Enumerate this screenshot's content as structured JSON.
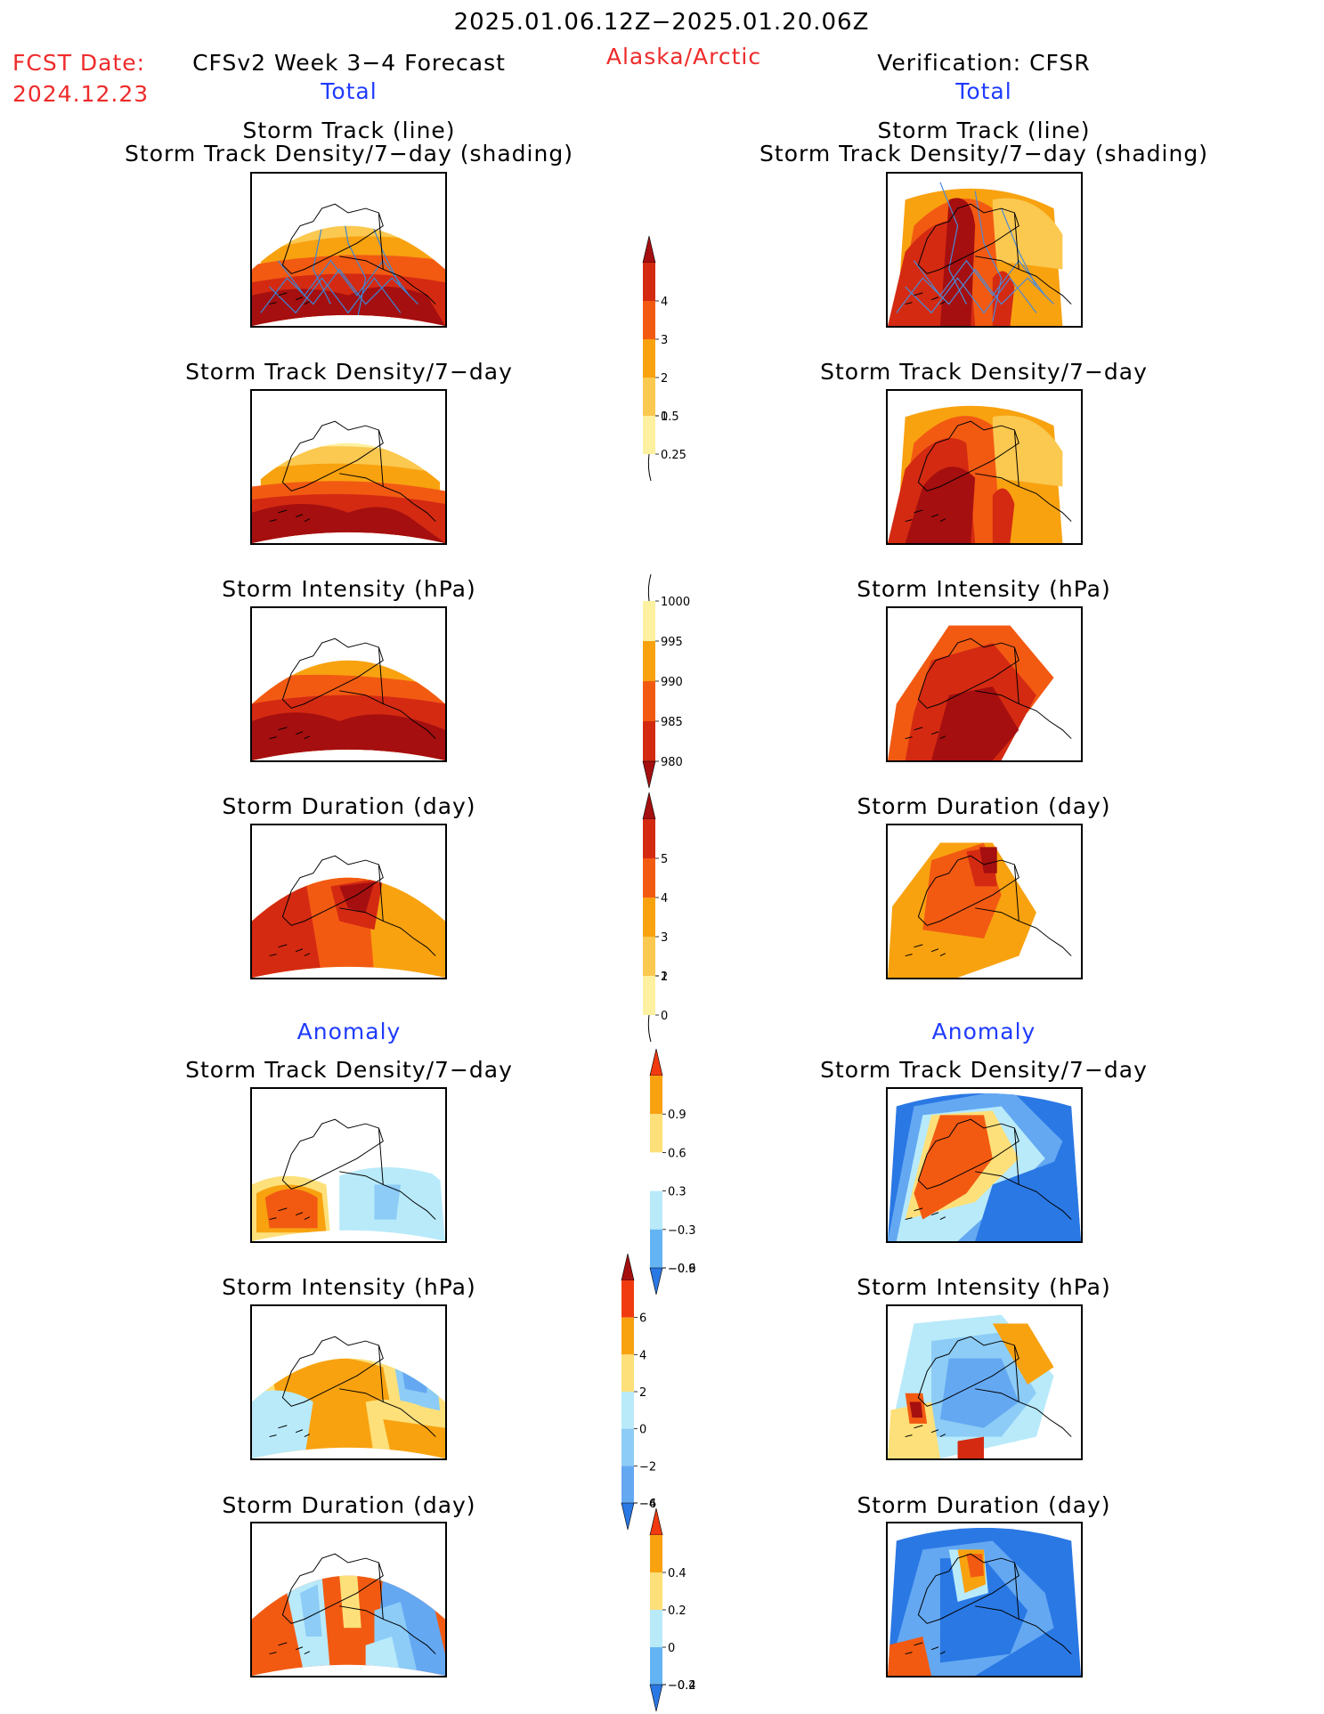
{
  "header": {
    "period": "2025.01.06.12Z−2025.01.20.06Z",
    "fcst_label": "FCST Date:",
    "fcst_date": "2024.12.23",
    "forecast_title": "CFSv2 Week 3−4 Forecast",
    "region": "Alaska/Arctic",
    "verification_title": "Verification: CFSR",
    "left_total": "Total",
    "right_total": "Total",
    "left_anomaly": "Anomaly",
    "right_anomaly": "Anomaly"
  },
  "panel_titles": {
    "track_line": "Storm Track (line)",
    "track_shading": "Storm Track Density/7−day (shading)",
    "density": "Storm Track Density/7−day",
    "intensity": "Storm Intensity (hPa)",
    "duration": "Storm Duration (day)"
  },
  "colorbars": {
    "density_total": {
      "labels": [
        "4",
        "3",
        "2",
        "1",
        "0.5",
        "0.25"
      ],
      "colors": [
        "#a50f0f",
        "#d42a12",
        "#f25a12",
        "#f8a210",
        "#fbc850",
        "#fdf0a0"
      ]
    },
    "intensity_total": {
      "labels": [
        "1000",
        "995",
        "990",
        "985",
        "980"
      ],
      "colors": [
        "#fdf0a0",
        "#f8a210",
        "#f25a12",
        "#d42a12",
        "#a50f0f"
      ]
    },
    "duration_total": {
      "labels": [
        "5",
        "4",
        "3",
        "2",
        "1",
        "0"
      ],
      "colors": [
        "#a50f0f",
        "#d42a12",
        "#f25a12",
        "#f8a210",
        "#fbc850",
        "#fdf0a0"
      ]
    },
    "density_anomaly": {
      "labels": [
        "0.9",
        "0.6",
        "0.3",
        "−0.3",
        "−0.6",
        "−0.9"
      ],
      "colors": [
        "#f03a10",
        "#f8a210",
        "#fde07a",
        "#ffffff",
        "#b8eafa",
        "#64b4f4",
        "#2a78e4"
      ]
    },
    "intensity_anomaly": {
      "labels": [
        "6",
        "4",
        "2",
        "0",
        "−2",
        "−4",
        "−6"
      ],
      "colors": [
        "#a50f0f",
        "#f03a10",
        "#f8a210",
        "#fde07a",
        "#b8eafa",
        "#8cccf6",
        "#64a8f2",
        "#2a78e4"
      ]
    },
    "duration_anomaly": {
      "labels": [
        "0.4",
        "0.2",
        "0",
        "−0.2",
        "−0.4"
      ],
      "colors": [
        "#f03a10",
        "#f8a210",
        "#fde07a",
        "#b8eafa",
        "#64b4f4",
        "#2a78e4"
      ]
    }
  }
}
